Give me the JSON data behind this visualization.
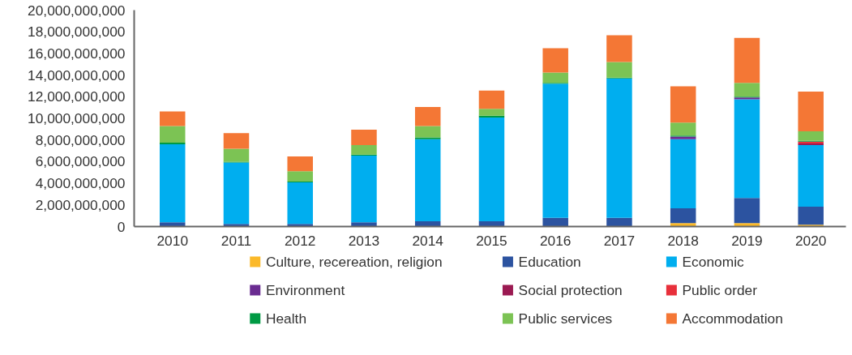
{
  "chart_data": {
    "type": "bar",
    "stacked": true,
    "categories": [
      "2010",
      "2011",
      "2012",
      "2013",
      "2014",
      "2015",
      "2016",
      "2017",
      "2018",
      "2019",
      "2020"
    ],
    "series": [
      {
        "name": "Culture, recereation, religion",
        "color": "#fbb929",
        "values": [
          0,
          0,
          0,
          0,
          0,
          0,
          0,
          0,
          320000000,
          320000000,
          160000000
        ]
      },
      {
        "name": "Education",
        "color": "#2c53a0",
        "values": [
          400000000,
          240000000,
          240000000,
          400000000,
          480000000,
          480000000,
          800000000,
          800000000,
          1360000000,
          2320000000,
          1680000000
        ]
      },
      {
        "name": "Economic",
        "color": "#00aeef",
        "values": [
          7200000000,
          5680000000,
          3840000000,
          6160000000,
          7600000000,
          9600000000,
          12400000000,
          12880000000,
          6400000000,
          9120000000,
          5680000000
        ]
      },
      {
        "name": "Environment",
        "color": "#6a2c91",
        "values": [
          0,
          0,
          0,
          0,
          0,
          0,
          0,
          0,
          240000000,
          160000000,
          0
        ]
      },
      {
        "name": "Social protection",
        "color": "#9b1a52",
        "values": [
          0,
          0,
          0,
          0,
          0,
          0,
          0,
          0,
          0,
          0,
          160000000
        ]
      },
      {
        "name": "Public order",
        "color": "#e8303b",
        "values": [
          0,
          0,
          0,
          0,
          0,
          0,
          0,
          0,
          0,
          0,
          160000000
        ]
      },
      {
        "name": "Health",
        "color": "#009a44",
        "values": [
          160000000,
          80000000,
          80000000,
          80000000,
          160000000,
          160000000,
          80000000,
          80000000,
          80000000,
          80000000,
          80000000
        ]
      },
      {
        "name": "Public services",
        "color": "#7cc354",
        "values": [
          1520000000,
          1200000000,
          960000000,
          880000000,
          1040000000,
          640000000,
          960000000,
          1440000000,
          1200000000,
          1280000000,
          880000000
        ]
      },
      {
        "name": "Accommodation",
        "color": "#f47735",
        "values": [
          1360000000,
          1440000000,
          1360000000,
          1440000000,
          1760000000,
          1680000000,
          2240000000,
          2480000000,
          3360000000,
          4160000000,
          3680000000
        ]
      }
    ],
    "ylim": [
      0,
      20000000000
    ],
    "yticks": [
      0,
      {
        "value": 2000000000,
        "label": "2,000,000,000"
      },
      {
        "value": 4000000000,
        "label": "4,000,000,000"
      },
      {
        "value": 6000000000,
        "label": "6,000,000,000"
      },
      {
        "value": 8000000000,
        "label": "8,000,000,000"
      },
      {
        "value": 10000000000,
        "label": "10,000,000,000"
      },
      {
        "value": 12000000000,
        "label": "12,000,000,000"
      },
      {
        "value": 14000000000,
        "label": "14,000,000,000"
      },
      {
        "value": 16000000000,
        "label": "16,000,000,000"
      },
      {
        "value": 18000000000,
        "label": "18,000,000,000"
      },
      {
        "value": 20000000000,
        "label": "20,000,000,000"
      }
    ],
    "grid": false,
    "legend": "bottom"
  }
}
